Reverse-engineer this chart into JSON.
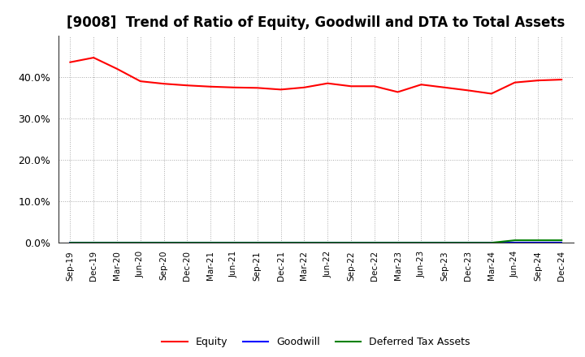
{
  "title": "[9008]  Trend of Ratio of Equity, Goodwill and DTA to Total Assets",
  "x_labels": [
    "Sep-19",
    "Dec-19",
    "Mar-20",
    "Jun-20",
    "Sep-20",
    "Dec-20",
    "Mar-21",
    "Jun-21",
    "Sep-21",
    "Dec-21",
    "Mar-22",
    "Jun-22",
    "Sep-22",
    "Dec-22",
    "Mar-23",
    "Jun-23",
    "Sep-23",
    "Dec-23",
    "Mar-24",
    "Jun-24",
    "Sep-24",
    "Dec-24"
  ],
  "equity": [
    0.436,
    0.447,
    0.42,
    0.39,
    0.384,
    0.38,
    0.377,
    0.375,
    0.374,
    0.37,
    0.375,
    0.385,
    0.378,
    0.378,
    0.364,
    0.382,
    0.375,
    0.368,
    0.36,
    0.387,
    0.392,
    0.394
  ],
  "goodwill": [
    0.0,
    0.0,
    0.0,
    0.0,
    0.0,
    0.0,
    0.0,
    0.0,
    0.0,
    0.0,
    0.0,
    0.0,
    0.0,
    0.0,
    0.0,
    0.0,
    0.0,
    0.0,
    0.0,
    0.0,
    0.0,
    0.0
  ],
  "dta": [
    0.0,
    0.0,
    0.0,
    0.0,
    0.0,
    0.0,
    0.0,
    0.0,
    0.0,
    0.0,
    0.0,
    0.0,
    0.0,
    0.0,
    0.0,
    0.0,
    0.0,
    0.0,
    0.0,
    0.006,
    0.006,
    0.006
  ],
  "equity_color": "#FF0000",
  "goodwill_color": "#0000FF",
  "dta_color": "#008000",
  "ylim": [
    0.0,
    0.5
  ],
  "yticks": [
    0.0,
    0.1,
    0.2,
    0.3,
    0.4
  ],
  "background_color": "#FFFFFF",
  "plot_bg_color": "#FFFFFF",
  "grid_color": "#AAAAAA",
  "title_fontsize": 12,
  "legend_labels": [
    "Equity",
    "Goodwill",
    "Deferred Tax Assets"
  ]
}
